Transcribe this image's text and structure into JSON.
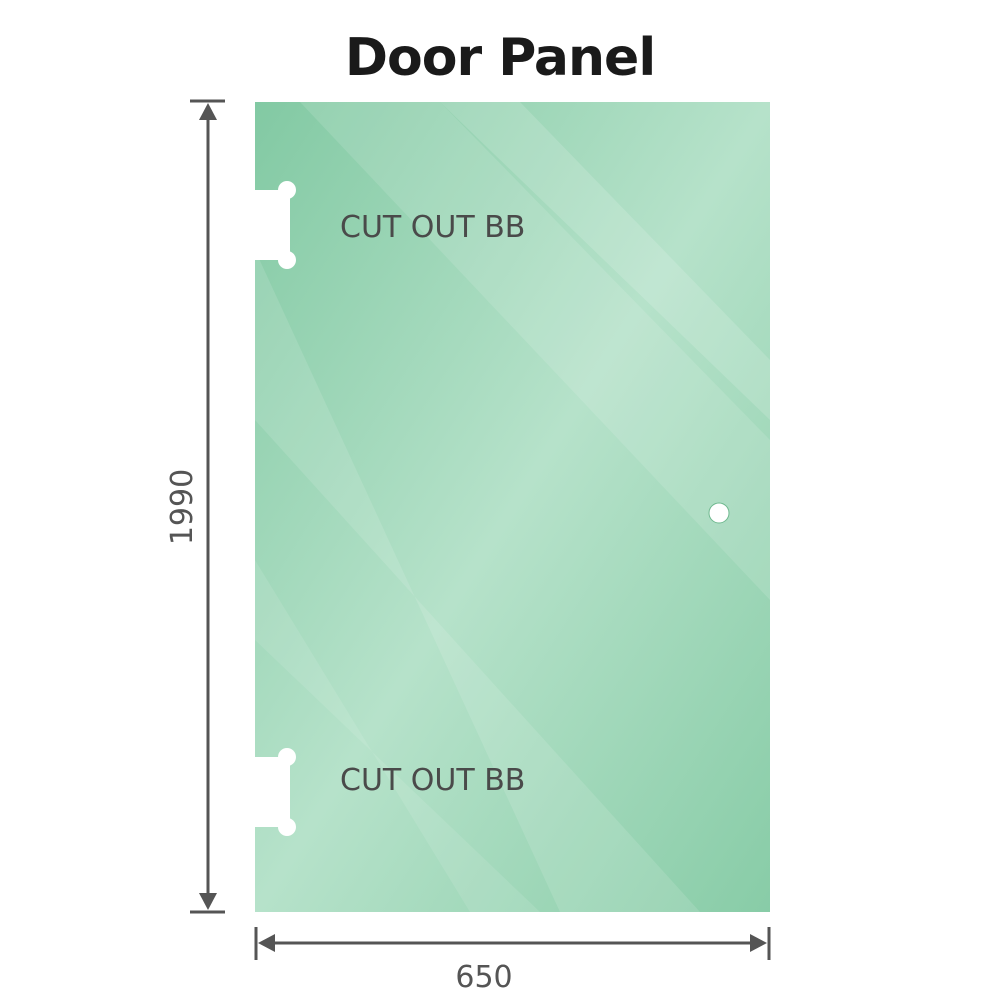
{
  "title": "Door Panel",
  "cutouts": [
    {
      "label": "CUT OUT BB"
    },
    {
      "label": "CUT OUT BB"
    }
  ],
  "dimensions": {
    "height": "1990",
    "width": "650"
  },
  "colors": {
    "glass": "#86cba6",
    "glass_light": "#b9e3cc",
    "dimension_line": "#555555"
  }
}
